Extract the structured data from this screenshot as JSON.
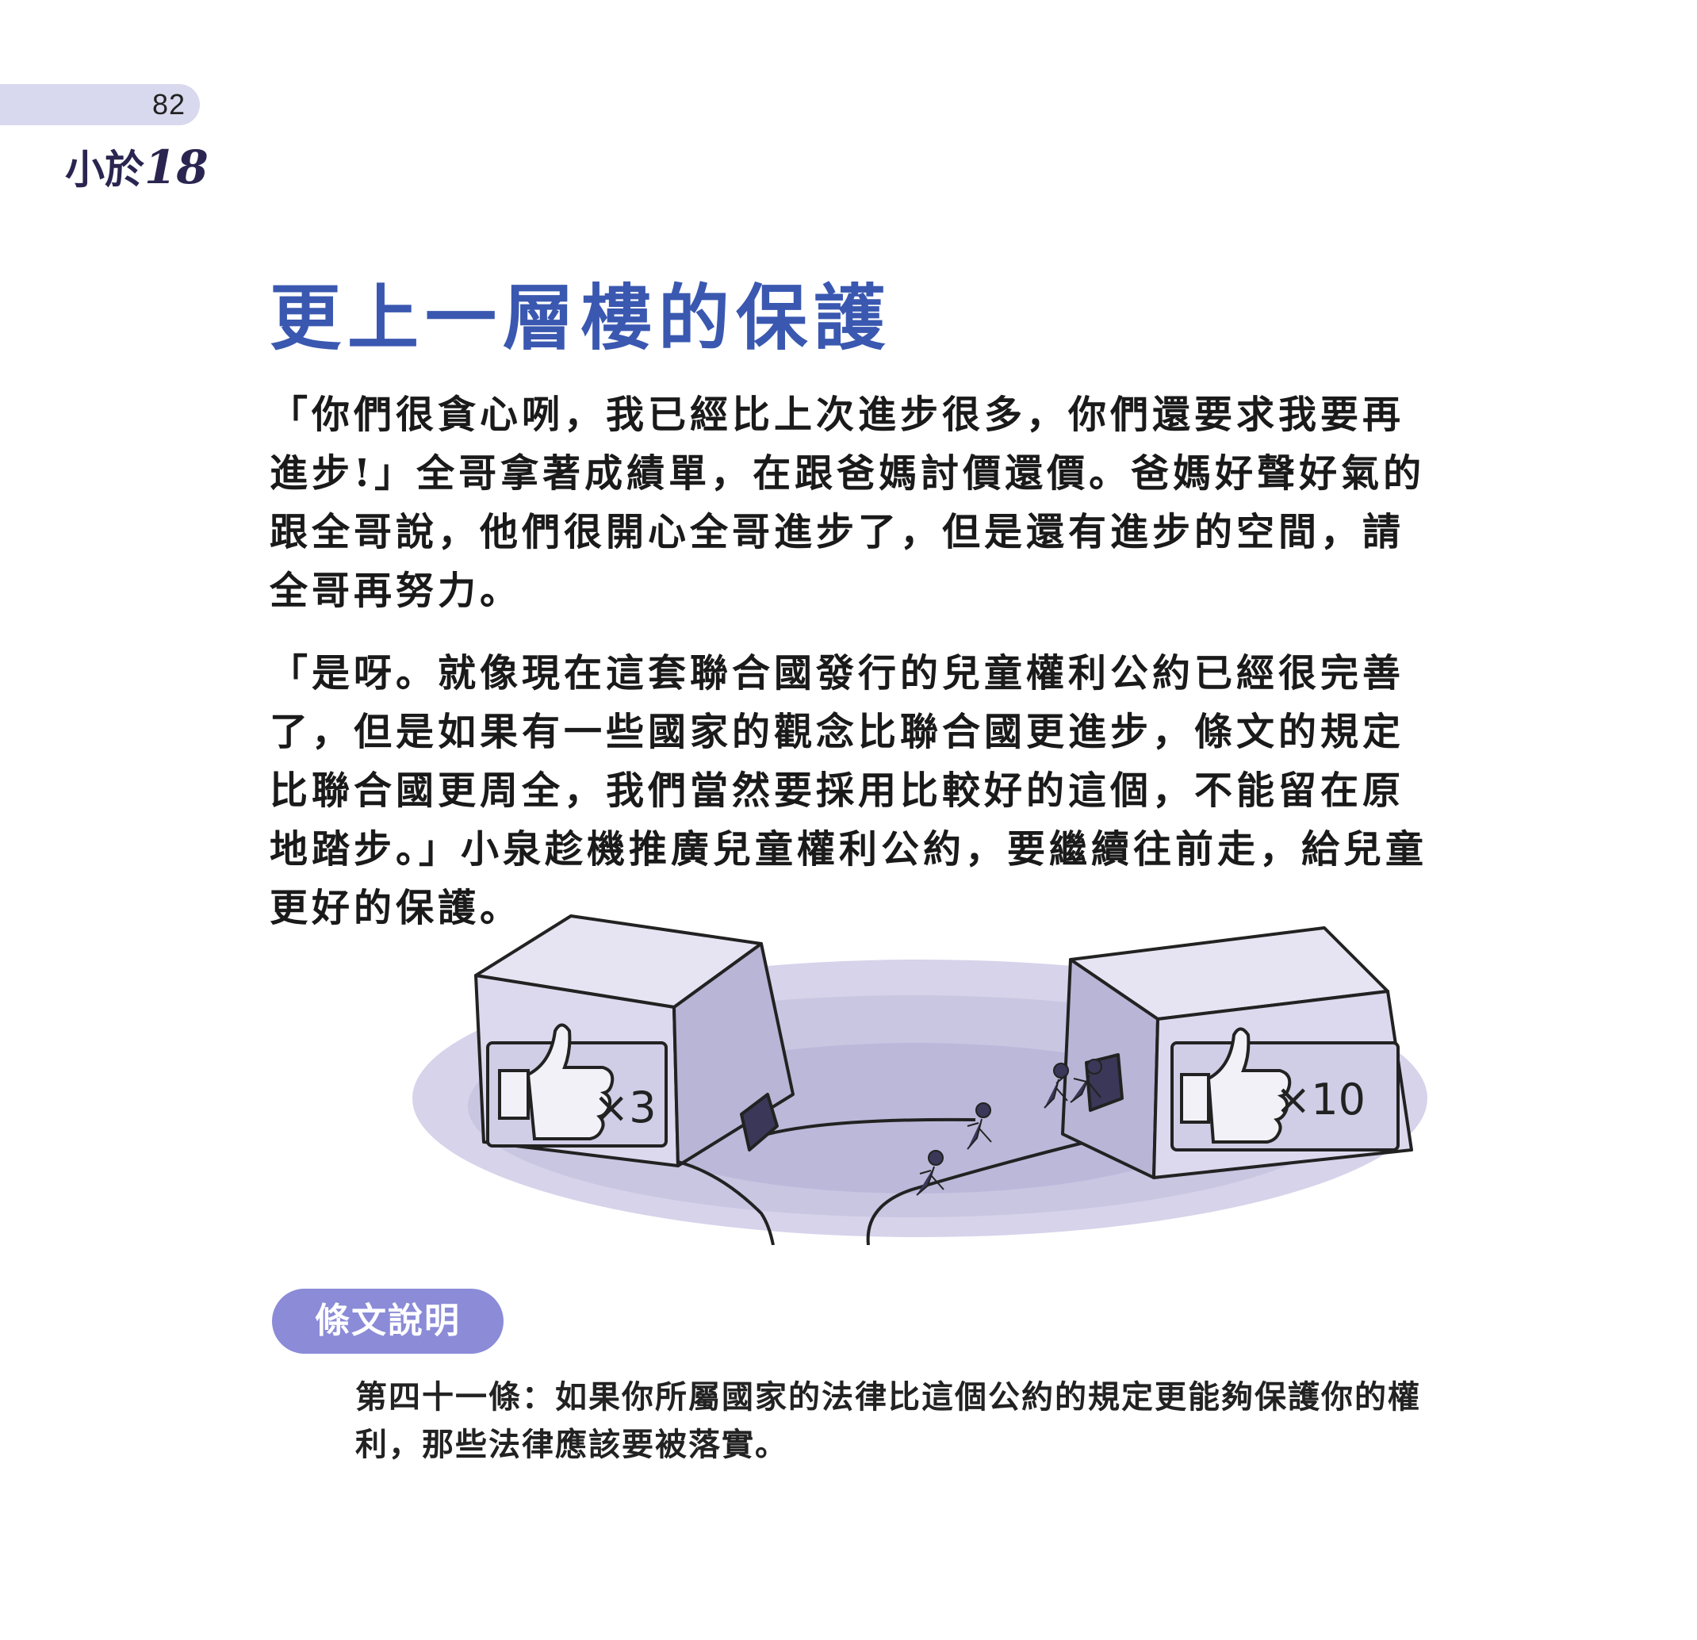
{
  "header": {
    "page_number": "82",
    "series_title_prefix": "小於",
    "series_title_number": "18"
  },
  "chapter": {
    "title": "更上一層樓的保護"
  },
  "body": {
    "paragraphs": [
      "「你們很貪心咧，我已經比上次進步很多，你們還要求我要再進步!」全哥拿著成績單，在跟爸媽討價還價。爸媽好聲好氣的跟全哥說，他們很開心全哥進步了，但是還有進步的空間，請全哥再努力。",
      "「是呀。就像現在這套聯合國發行的兒童權利公約已經很完善了，但是如果有一些國家的觀念比聯合國更進步，條文的規定比聯合國更周全，我們當然要採用比較好的這個，不能留在原地踏步。」小泉趁機推廣兒童權利公約，要繼續往前走，給兒童更好的保護。"
    ]
  },
  "illustration": {
    "left_block_label": "×3",
    "right_block_label": "×10",
    "left_icon": "thumbs-up-icon",
    "right_icon": "thumbs-up-icon",
    "fill_color": "#c9c6e2"
  },
  "article": {
    "section_label": "條文說明",
    "text": "第四十一條：如果你所屬國家的法律比這個公約的規定更能夠保護你的權利，那些法律應該要被落實。"
  },
  "colors": {
    "title_blue": "#3a58b0",
    "pill_purple": "#8b8bd8",
    "tab_lavender": "#d8d8ee"
  }
}
